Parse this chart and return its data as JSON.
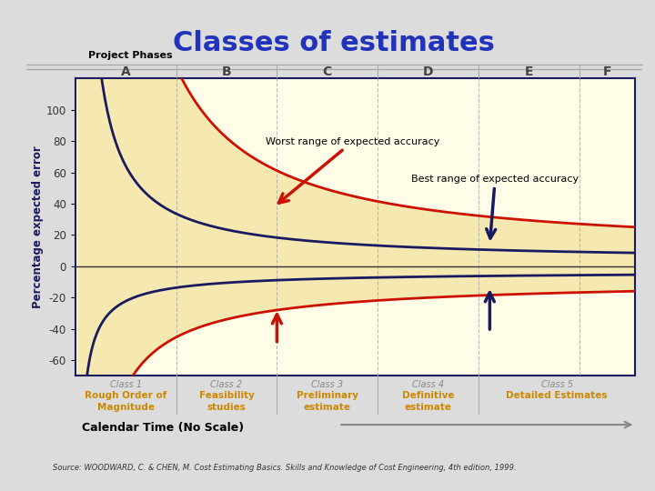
{
  "title": "Classes of estimates",
  "title_color": "#2233BB",
  "title_fontsize": 22,
  "outer_bg": "#DCDCDC",
  "inner_bg": "#FFFFF5",
  "plot_bg": "#FFFDE8",
  "header_bg": "#E8C8A0",
  "class_bar_bg": "#F5DC50",
  "ylabel": "Percentage expected error",
  "xlabel": "Calendar Time (No Scale)",
  "phase_labels": [
    "A",
    "B",
    "C",
    "D",
    "E",
    "F"
  ],
  "class_labels": [
    "Class 1",
    "Class 2",
    "Class 3",
    "Class 4",
    "Class 5"
  ],
  "class_sublabels": [
    "Rough Order of\nMagnitude",
    "Feasibility\nstudies",
    "Preliminary\nestimate",
    "Definitive\nestimate",
    "Detailed Estimates"
  ],
  "yticks": [
    -60,
    -40,
    -20,
    0,
    20,
    40,
    60,
    80,
    100
  ],
  "ylim": [
    -70,
    120
  ],
  "worst_label": "Worst range of expected accuracy",
  "best_label": "Best range of expected accuracy",
  "source_text": "Source: WOODWARD, C. & CHEN, M. Cost Estimating Basics. Skills and Knowledge of Cost Engineering, 4th edition, 1999.",
  "project_phases_label": "Project Phases",
  "red_color": "#CC1100",
  "navy_color": "#1A1A60",
  "fill_color": "#F5E8B0",
  "phase_x": [
    0.0,
    0.18,
    0.36,
    0.54,
    0.72,
    0.9,
    1.0
  ],
  "class_x": [
    0.0,
    0.18,
    0.36,
    0.54,
    0.72,
    1.0
  ]
}
